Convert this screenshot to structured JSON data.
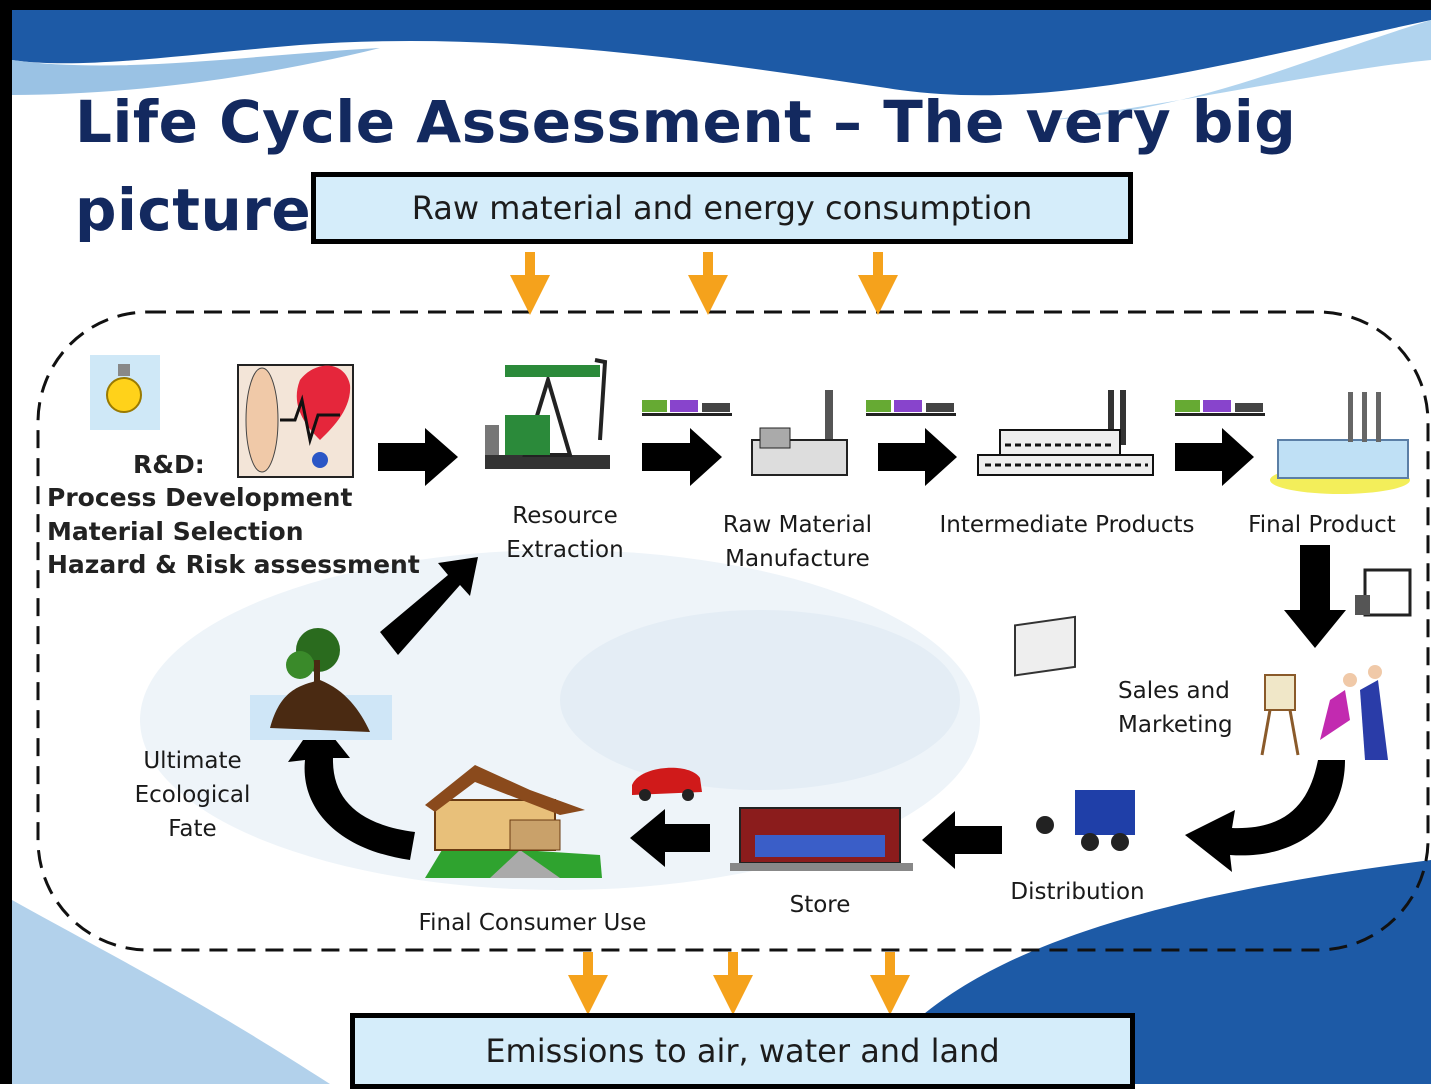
{
  "title": "Life Cycle Assessment – The very big picture",
  "input_box": "Raw material and energy consumption",
  "output_box": "Emissions to air, water and land",
  "rd": {
    "heading": "R&D:",
    "items": [
      "Process Development",
      "Material Selection",
      "Hazard & Risk assessment"
    ]
  },
  "stages": [
    "Resource Extraction",
    "Raw Material Manufacture",
    "Intermediate Products",
    "Final Product",
    "Sales and Marketing",
    "Distribution",
    "Store",
    "Final Consumer Use",
    "Ultimate Ecological Fate"
  ]
}
